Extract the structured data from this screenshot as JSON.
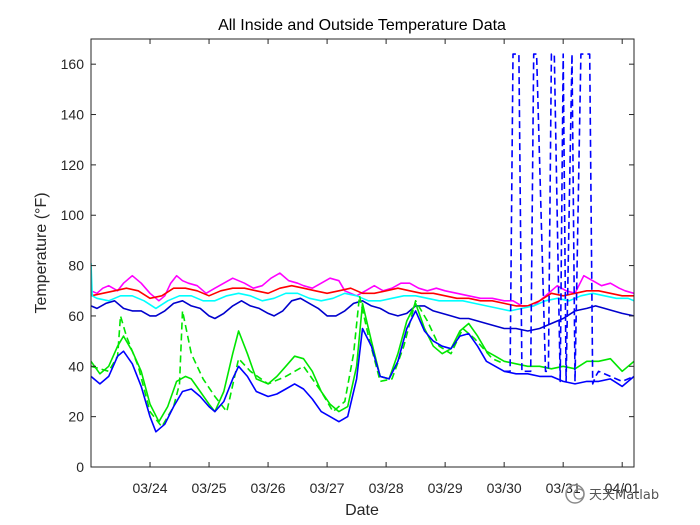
{
  "chart_data": {
    "type": "line",
    "title": "All Inside and Outside Temperature Data",
    "xlabel": "Date",
    "ylabel": "Temperature (°F)",
    "xlim": [
      0,
      9.2
    ],
    "ylim": [
      0,
      170
    ],
    "yticks": [
      0,
      20,
      40,
      60,
      80,
      100,
      120,
      140,
      160
    ],
    "xticks": [
      {
        "value": 1.0,
        "label": "03/24"
      },
      {
        "value": 2.0,
        "label": "03/25"
      },
      {
        "value": 3.0,
        "label": "03/26"
      },
      {
        "value": 4.0,
        "label": "03/27"
      },
      {
        "value": 5.0,
        "label": "03/28"
      },
      {
        "value": 6.0,
        "label": "03/29"
      },
      {
        "value": 7.0,
        "label": "03/30"
      },
      {
        "value": 8.0,
        "label": "03/31"
      },
      {
        "value": 9.0,
        "label": "04/01"
      }
    ],
    "grid": false,
    "legend": "none",
    "series": [
      {
        "color": "#ff00ff",
        "style": "solid",
        "x": [
          0.0,
          0.1,
          0.2,
          0.3,
          0.45,
          0.55,
          0.7,
          0.85,
          1.0,
          1.15,
          1.25,
          1.35,
          1.45,
          1.55,
          1.65,
          1.8,
          1.95,
          2.1,
          2.25,
          2.4,
          2.5,
          2.6,
          2.75,
          2.9,
          3.05,
          3.2,
          3.35,
          3.5,
          3.6,
          3.75,
          3.9,
          4.05,
          4.2,
          4.3,
          4.5,
          4.65,
          4.8,
          4.95,
          5.1,
          5.25,
          5.4,
          5.55,
          5.7,
          5.85,
          6.0,
          6.2,
          6.4,
          6.6,
          6.8,
          7.0,
          7.15,
          7.3,
          7.5,
          7.7,
          7.9,
          8.05,
          8.2,
          8.35,
          8.5,
          8.65,
          8.8,
          8.95,
          9.05,
          9.2
        ],
        "y": [
          70,
          69,
          71,
          72,
          70,
          73,
          76,
          73,
          69,
          66,
          68,
          73,
          76,
          74,
          73,
          72,
          69,
          71,
          73,
          75,
          74,
          73,
          71,
          72,
          75,
          77,
          74,
          73,
          72,
          71,
          73,
          75,
          74,
          70,
          68,
          70,
          72,
          70,
          71,
          73,
          73,
          71,
          70,
          71,
          70,
          69,
          68,
          67,
          67,
          66,
          66,
          64,
          64,
          68,
          72,
          70,
          69,
          76,
          74,
          72,
          73,
          71,
          70,
          69
        ]
      },
      {
        "color": "#ff0000",
        "style": "solid",
        "x": [
          0.0,
          0.2,
          0.4,
          0.6,
          0.8,
          1.0,
          1.2,
          1.4,
          1.6,
          1.8,
          2.0,
          2.2,
          2.4,
          2.6,
          2.8,
          3.0,
          3.2,
          3.4,
          3.6,
          3.8,
          4.0,
          4.2,
          4.4,
          4.6,
          4.8,
          5.0,
          5.2,
          5.4,
          5.6,
          5.8,
          6.0,
          6.2,
          6.4,
          6.6,
          6.8,
          7.0,
          7.2,
          7.4,
          7.6,
          7.8,
          8.0,
          8.2,
          8.4,
          8.6,
          8.8,
          9.0,
          9.2
        ],
        "y": [
          68,
          69,
          70,
          71,
          70,
          67,
          68,
          71,
          71,
          70,
          68,
          70,
          71,
          71,
          70,
          69,
          71,
          72,
          71,
          70,
          69,
          70,
          71,
          69,
          69,
          70,
          71,
          70,
          69,
          69,
          68,
          67,
          67,
          66,
          66,
          65,
          64,
          64,
          66,
          69,
          68,
          69,
          70,
          70,
          69,
          68,
          68
        ]
      },
      {
        "color": "#00ffff",
        "style": "solid",
        "x": [
          0.0,
          0.02,
          0.1,
          0.3,
          0.5,
          0.7,
          0.9,
          1.1,
          1.3,
          1.5,
          1.7,
          1.9,
          2.1,
          2.3,
          2.5,
          2.7,
          2.9,
          3.1,
          3.3,
          3.5,
          3.7,
          3.9,
          4.1,
          4.3,
          4.5,
          4.7,
          4.9,
          5.1,
          5.3,
          5.5,
          5.7,
          5.9,
          6.1,
          6.3,
          6.5,
          6.7,
          6.9,
          7.1,
          7.3,
          7.5,
          7.7,
          7.9,
          8.1,
          8.3,
          8.5,
          8.7,
          8.9,
          9.1,
          9.2
        ],
        "y": [
          81,
          68,
          67,
          66,
          68,
          68,
          66,
          63,
          66,
          68,
          68,
          66,
          66,
          68,
          69,
          68,
          66,
          67,
          69,
          69,
          67,
          66,
          67,
          69,
          68,
          66,
          66,
          67,
          68,
          68,
          67,
          66,
          66,
          66,
          65,
          64,
          63,
          62,
          63,
          64,
          66,
          67,
          66,
          68,
          69,
          68,
          67,
          67,
          66
        ]
      },
      {
        "color": "#0000cd",
        "style": "solid",
        "x": [
          0.0,
          0.1,
          0.25,
          0.4,
          0.55,
          0.7,
          0.85,
          1.0,
          1.1,
          1.25,
          1.4,
          1.55,
          1.7,
          1.85,
          2.0,
          2.1,
          2.25,
          2.4,
          2.55,
          2.7,
          2.85,
          3.0,
          3.1,
          3.25,
          3.4,
          3.55,
          3.7,
          3.85,
          4.0,
          4.15,
          4.3,
          4.45,
          4.6,
          4.75,
          4.9,
          5.05,
          5.2,
          5.35,
          5.5,
          5.65,
          5.8,
          5.95,
          6.1,
          6.25,
          6.4,
          6.55,
          6.7,
          6.85,
          7.0,
          7.2,
          7.4,
          7.6,
          7.8,
          8.0,
          8.2,
          8.4,
          8.55,
          8.7,
          8.85,
          9.0,
          9.2
        ],
        "y": [
          64,
          63,
          65,
          66,
          63,
          62,
          62,
          60,
          60,
          62,
          65,
          66,
          64,
          63,
          60,
          59,
          61,
          64,
          66,
          64,
          63,
          61,
          60,
          62,
          66,
          67,
          65,
          63,
          60,
          60,
          62,
          65,
          66,
          64,
          63,
          61,
          60,
          61,
          64,
          64,
          62,
          61,
          60,
          59,
          59,
          58,
          57,
          56,
          55,
          55,
          54,
          55,
          57,
          59,
          62,
          63,
          64,
          63,
          62,
          61,
          60
        ]
      },
      {
        "color": "#00e600",
        "style": "solid",
        "x": [
          0.0,
          0.15,
          0.3,
          0.45,
          0.55,
          0.7,
          0.85,
          1.0,
          1.15,
          1.3,
          1.45,
          1.6,
          1.7,
          1.85,
          2.0,
          2.1,
          2.25,
          2.4,
          2.5,
          2.65,
          2.8,
          3.0,
          3.15,
          3.3,
          3.45,
          3.6,
          3.75,
          3.9,
          4.05,
          4.2,
          4.35,
          4.5,
          4.6,
          4.75,
          4.9,
          5.05,
          5.2,
          5.35,
          5.5,
          5.65,
          5.8,
          5.95,
          6.1,
          6.25,
          6.4,
          6.55,
          6.7,
          6.85,
          7.0,
          7.2,
          7.4,
          7.6,
          7.8,
          8.0,
          8.2,
          8.4,
          8.6,
          8.8,
          9.0,
          9.2
        ],
        "y": [
          42,
          37,
          40,
          48,
          52,
          46,
          38,
          25,
          18,
          24,
          34,
          36,
          35,
          30,
          25,
          22,
          30,
          45,
          54,
          45,
          35,
          33,
          36,
          40,
          44,
          43,
          38,
          30,
          25,
          22,
          24,
          40,
          65,
          50,
          36,
          35,
          45,
          58,
          65,
          55,
          48,
          45,
          47,
          54,
          57,
          52,
          46,
          44,
          42,
          41,
          40,
          40,
          39,
          40,
          39,
          42,
          42,
          43,
          38,
          42
        ]
      },
      {
        "color": "#00e600",
        "style": "dashed",
        "x": [
          0.0,
          0.3,
          0.45,
          0.5,
          0.6,
          0.8,
          1.0,
          1.2,
          1.4,
          1.5,
          1.55,
          1.7,
          1.9,
          2.1,
          2.3,
          2.5,
          2.7,
          3.0,
          3.3,
          3.6,
          3.9,
          4.1,
          4.3,
          4.45,
          4.55,
          4.7,
          4.9,
          5.1,
          5.3,
          5.5,
          5.7,
          5.9,
          6.1,
          6.3,
          6.5,
          6.8,
          7.0
        ],
        "y": [
          40,
          38,
          44,
          60,
          52,
          40,
          22,
          16,
          24,
          33,
          62,
          45,
          35,
          28,
          22,
          43,
          38,
          33,
          36,
          40,
          30,
          22,
          26,
          45,
          68,
          52,
          34,
          35,
          48,
          66,
          58,
          48,
          45,
          55,
          51,
          43,
          41
        ]
      },
      {
        "color": "#0000ff",
        "style": "solid",
        "x": [
          0.0,
          0.15,
          0.3,
          0.45,
          0.55,
          0.7,
          0.85,
          1.0,
          1.1,
          1.25,
          1.4,
          1.55,
          1.7,
          1.85,
          2.0,
          2.1,
          2.25,
          2.4,
          2.5,
          2.65,
          2.8,
          3.0,
          3.15,
          3.3,
          3.45,
          3.6,
          3.75,
          3.9,
          4.05,
          4.2,
          4.35,
          4.5,
          4.6,
          4.75,
          4.9,
          5.05,
          5.2,
          5.35,
          5.5,
          5.65,
          5.8,
          5.95,
          6.1,
          6.25,
          6.4,
          6.55,
          6.7,
          6.85,
          7.0,
          7.2,
          7.4,
          7.6,
          7.8,
          8.0,
          8.2,
          8.4,
          8.6,
          8.8,
          9.0,
          9.2
        ],
        "y": [
          36,
          33,
          36,
          44,
          46,
          41,
          32,
          20,
          14,
          17,
          24,
          30,
          31,
          28,
          24,
          22,
          26,
          35,
          40,
          36,
          30,
          28,
          29,
          31,
          33,
          31,
          27,
          22,
          20,
          18,
          20,
          35,
          55,
          48,
          36,
          35,
          42,
          55,
          62,
          54,
          50,
          48,
          47,
          52,
          53,
          48,
          42,
          40,
          38,
          37,
          37,
          36,
          36,
          34,
          33,
          34,
          34,
          35,
          32,
          36
        ]
      },
      {
        "color": "#0000ff",
        "style": "dashed",
        "x": [
          7.0,
          7.1,
          7.15,
          7.25,
          7.3,
          7.45,
          7.5,
          7.55,
          7.7,
          7.75,
          7.8,
          7.85,
          7.95,
          8.0,
          8.05,
          8.15,
          8.2,
          8.3,
          8.35,
          8.45,
          8.5,
          8.55,
          8.6,
          8.8,
          9.0,
          9.2
        ],
        "y": [
          38,
          38,
          164,
          164,
          38,
          38,
          164,
          164,
          38,
          38,
          164,
          164,
          34,
          164,
          34,
          164,
          34,
          164,
          164,
          164,
          33,
          36,
          38,
          36,
          34,
          36
        ]
      }
    ]
  },
  "watermark": {
    "text": "天天Matlab"
  }
}
